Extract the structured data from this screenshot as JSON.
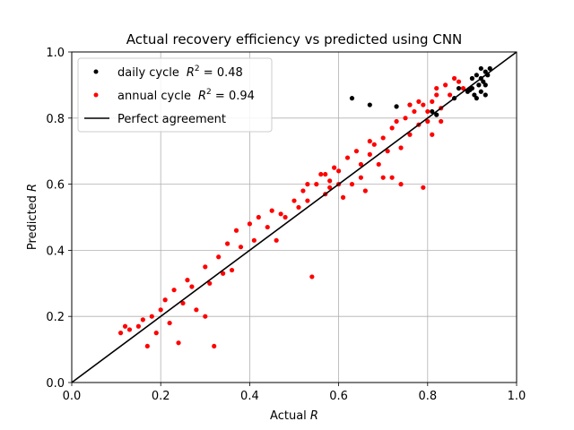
{
  "chart_data": {
    "type": "scatter",
    "title": "Actual recovery efficiency vs predicted using CNN",
    "xlabel": "Actual ",
    "xlabel_var": "R",
    "ylabel": "Predicted ",
    "ylabel_var": "R",
    "xlim": [
      0.0,
      1.0
    ],
    "ylim": [
      0.0,
      1.0
    ],
    "x_ticks": [
      "0.0",
      "0.2",
      "0.4",
      "0.6",
      "0.8",
      "1.0"
    ],
    "y_ticks": [
      "0.0",
      "0.2",
      "0.4",
      "0.6",
      "0.8",
      "1.0"
    ],
    "grid": true,
    "legend_position": "top-left",
    "legend": [
      {
        "label": "daily cycle",
        "stat_label": "R",
        "exponent": "2",
        "stat_value": " = 0.48",
        "color": "#000000",
        "kind": "point"
      },
      {
        "label": "annual cycle",
        "stat_label": "R",
        "exponent": "2",
        "stat_value": " = 0.94",
        "color": "#ff0000",
        "kind": "point"
      },
      {
        "label": "Perfect agreement",
        "color": "#000000",
        "kind": "line"
      }
    ],
    "series": [
      {
        "name": "daily cycle",
        "color": "#000000",
        "points": [
          [
            0.63,
            0.86
          ],
          [
            0.67,
            0.84
          ],
          [
            0.73,
            0.835
          ],
          [
            0.76,
            0.84
          ],
          [
            0.81,
            0.82
          ],
          [
            0.82,
            0.81
          ],
          [
            0.86,
            0.86
          ],
          [
            0.87,
            0.89
          ],
          [
            0.89,
            0.88
          ],
          [
            0.9,
            0.92
          ],
          [
            0.91,
            0.93
          ],
          [
            0.92,
            0.95
          ],
          [
            0.93,
            0.94
          ],
          [
            0.915,
            0.9
          ],
          [
            0.925,
            0.91
          ],
          [
            0.905,
            0.87
          ],
          [
            0.935,
            0.93
          ],
          [
            0.92,
            0.88
          ],
          [
            0.93,
            0.9
          ],
          [
            0.9,
            0.89
          ],
          [
            0.91,
            0.86
          ],
          [
            0.94,
            0.95
          ],
          [
            0.895,
            0.885
          ],
          [
            0.92,
            0.92
          ],
          [
            0.93,
            0.87
          ]
        ]
      },
      {
        "name": "annual cycle",
        "color": "#ff0000",
        "points": [
          [
            0.11,
            0.15
          ],
          [
            0.12,
            0.17
          ],
          [
            0.13,
            0.16
          ],
          [
            0.15,
            0.17
          ],
          [
            0.16,
            0.19
          ],
          [
            0.17,
            0.11
          ],
          [
            0.18,
            0.2
          ],
          [
            0.19,
            0.15
          ],
          [
            0.2,
            0.22
          ],
          [
            0.21,
            0.25
          ],
          [
            0.22,
            0.18
          ],
          [
            0.23,
            0.28
          ],
          [
            0.25,
            0.24
          ],
          [
            0.26,
            0.31
          ],
          [
            0.27,
            0.29
          ],
          [
            0.28,
            0.22
          ],
          [
            0.3,
            0.35
          ],
          [
            0.31,
            0.3
          ],
          [
            0.32,
            0.11
          ],
          [
            0.33,
            0.38
          ],
          [
            0.34,
            0.33
          ],
          [
            0.35,
            0.42
          ],
          [
            0.36,
            0.34
          ],
          [
            0.37,
            0.46
          ],
          [
            0.38,
            0.41
          ],
          [
            0.4,
            0.48
          ],
          [
            0.41,
            0.43
          ],
          [
            0.42,
            0.5
          ],
          [
            0.44,
            0.47
          ],
          [
            0.45,
            0.52
          ],
          [
            0.47,
            0.51
          ],
          [
            0.48,
            0.5
          ],
          [
            0.5,
            0.55
          ],
          [
            0.51,
            0.53
          ],
          [
            0.52,
            0.58
          ],
          [
            0.53,
            0.55
          ],
          [
            0.54,
            0.32
          ],
          [
            0.55,
            0.6
          ],
          [
            0.56,
            0.63
          ],
          [
            0.57,
            0.57
          ],
          [
            0.58,
            0.61
          ],
          [
            0.59,
            0.65
          ],
          [
            0.6,
            0.64
          ],
          [
            0.62,
            0.68
          ],
          [
            0.63,
            0.6
          ],
          [
            0.64,
            0.7
          ],
          [
            0.65,
            0.66
          ],
          [
            0.66,
            0.58
          ],
          [
            0.67,
            0.69
          ],
          [
            0.68,
            0.72
          ],
          [
            0.69,
            0.66
          ],
          [
            0.7,
            0.74
          ],
          [
            0.71,
            0.7
          ],
          [
            0.72,
            0.77
          ],
          [
            0.73,
            0.79
          ],
          [
            0.74,
            0.71
          ],
          [
            0.75,
            0.8
          ],
          [
            0.76,
            0.75
          ],
          [
            0.77,
            0.82
          ],
          [
            0.78,
            0.78
          ],
          [
            0.79,
            0.84
          ],
          [
            0.8,
            0.79
          ],
          [
            0.81,
            0.85
          ],
          [
            0.82,
            0.89
          ],
          [
            0.83,
            0.83
          ],
          [
            0.84,
            0.9
          ],
          [
            0.85,
            0.87
          ],
          [
            0.86,
            0.92
          ],
          [
            0.87,
            0.91
          ],
          [
            0.88,
            0.89
          ],
          [
            0.79,
            0.59
          ],
          [
            0.74,
            0.6
          ],
          [
            0.7,
            0.62
          ],
          [
            0.61,
            0.56
          ],
          [
            0.46,
            0.43
          ],
          [
            0.3,
            0.2
          ],
          [
            0.24,
            0.12
          ],
          [
            0.53,
            0.6
          ],
          [
            0.6,
            0.6
          ],
          [
            0.65,
            0.62
          ],
          [
            0.72,
            0.62
          ],
          [
            0.81,
            0.75
          ],
          [
            0.78,
            0.85
          ],
          [
            0.76,
            0.84
          ],
          [
            0.83,
            0.79
          ],
          [
            0.57,
            0.63
          ],
          [
            0.58,
            0.59
          ],
          [
            0.67,
            0.73
          ],
          [
            0.82,
            0.87
          ],
          [
            0.8,
            0.82
          ]
        ]
      }
    ],
    "reference_line": {
      "name": "Perfect agreement",
      "from": [
        0.0,
        0.0
      ],
      "to": [
        1.0,
        1.0
      ],
      "color": "#000000"
    }
  }
}
